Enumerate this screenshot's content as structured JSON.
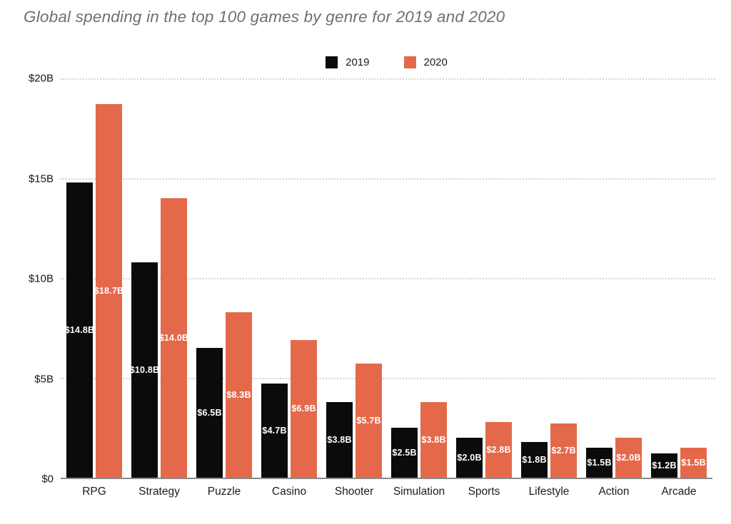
{
  "header": {
    "title": "Global spending in the top 100 games by genre for 2019 and 2020"
  },
  "colors": {
    "background": "#ffffff",
    "title_text": "#6f6f71",
    "axis_line": "#8a8a8a",
    "gridline": "#d4d4d4",
    "tick_text": "#161616",
    "bar_2019": "#0b0b0b",
    "bar_2020": "#e3694a",
    "value_label_text": "#ffffff"
  },
  "chart_data": {
    "type": "bar",
    "title": "Global spending in the top 100 games by genre for 2019 and 2020",
    "categories": [
      "RPG",
      "Strategy",
      "Puzzle",
      "Casino",
      "Shooter",
      "Simulation",
      "Sports",
      "Lifestyle",
      "Action",
      "Arcade"
    ],
    "series": [
      {
        "name": "2019",
        "color": "#0b0b0b",
        "values": [
          14.8,
          10.8,
          6.5,
          4.7,
          3.8,
          2.5,
          2.0,
          1.8,
          1.5,
          1.2
        ],
        "labels": [
          "$14.8B",
          "$10.8B",
          "$6.5B",
          "$4.7B",
          "$3.8B",
          "$2.5B",
          "$2.0B",
          "$1.8B",
          "$1.5B",
          "$1.2B"
        ]
      },
      {
        "name": "2020",
        "color": "#e3694a",
        "values": [
          18.7,
          14.0,
          8.3,
          6.9,
          5.7,
          3.8,
          2.8,
          2.7,
          2.0,
          1.5
        ],
        "labels": [
          "$18.7B",
          "$14.0B",
          "$8.3B",
          "$6.9B",
          "$5.7B",
          "$3.8B",
          "$2.8B",
          "$2.7B",
          "$2.0B",
          "$1.5B"
        ]
      }
    ],
    "xlabel": "",
    "ylabel": "",
    "ylim": [
      0,
      20
    ],
    "yticks": [
      {
        "value": 20,
        "label": "$20B"
      },
      {
        "value": 15,
        "label": "$15B"
      },
      {
        "value": 10,
        "label": "$10B"
      },
      {
        "value": 5,
        "label": "$5B"
      },
      {
        "value": 0,
        "label": "$0"
      }
    ],
    "grid": "horizontal-dotted",
    "legend_position": "top-center",
    "value_labels": "inside-center-white"
  }
}
